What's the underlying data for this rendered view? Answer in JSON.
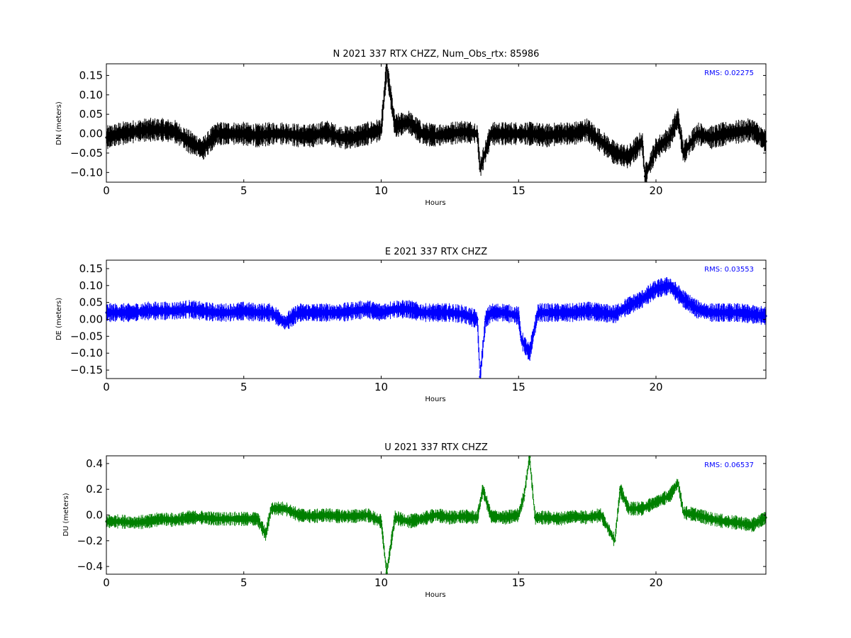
{
  "chart_data": [
    {
      "type": "scatter",
      "title": "N 2021 337 RTX  CHZZ, Num_Obs_rtx: 85986",
      "xlabel": "Hours",
      "ylabel": "DN (meters)",
      "xlim": [
        0,
        24
      ],
      "ylim": [
        -0.125,
        0.18
      ],
      "xticks": [
        0,
        5,
        10,
        15,
        20
      ],
      "xtick_labels": [
        "0",
        "5",
        "10",
        "15",
        "20"
      ],
      "yticks": [
        -0.1,
        -0.05,
        0.0,
        0.05,
        0.1,
        0.15
      ],
      "ytick_labels": [
        "−0.10",
        "−0.05",
        "0.00",
        "0.05",
        "0.10",
        "0.15"
      ],
      "annotation": "RMS:  0.02275",
      "annotation_color": "#0000ff",
      "color": "#000000",
      "grid": false,
      "noise": 0.022,
      "x": [
        0,
        0.5,
        1,
        1.5,
        2,
        2.5,
        3,
        3.5,
        4,
        4.5,
        5,
        5.5,
        6,
        6.5,
        7,
        7.5,
        8,
        8.5,
        9,
        9.5,
        10,
        10.2,
        10.5,
        11,
        11.5,
        12,
        12.5,
        13,
        13.5,
        13.6,
        14,
        14.5,
        15,
        15.5,
        16,
        16.5,
        17,
        17.5,
        18,
        18.5,
        19,
        19.5,
        19.6,
        20,
        20.5,
        20.8,
        21,
        21.5,
        22,
        22.5,
        23,
        23.5,
        24
      ],
      "y": [
        -0.01,
        0.0,
        0.005,
        0.01,
        0.01,
        0.005,
        -0.02,
        -0.04,
        0.0,
        0.0,
        0.0,
        -0.005,
        0.0,
        0.0,
        -0.005,
        -0.005,
        0.005,
        -0.01,
        -0.01,
        0.0,
        0.01,
        0.17,
        0.02,
        0.03,
        0.0,
        -0.005,
        0.0,
        0.005,
        0.0,
        -0.09,
        0.0,
        0.0,
        0.0,
        0.0,
        -0.005,
        0.0,
        0.0,
        0.01,
        -0.02,
        -0.05,
        -0.06,
        -0.02,
        -0.11,
        -0.04,
        -0.01,
        0.04,
        -0.05,
        0.0,
        -0.01,
        0.0,
        0.005,
        0.01,
        -0.02
      ]
    },
    {
      "type": "scatter",
      "title": "E 2021 337 RTX  CHZZ",
      "xlabel": "Hours",
      "ylabel": "DE (meters)",
      "xlim": [
        0,
        24
      ],
      "ylim": [
        -0.175,
        0.175
      ],
      "xticks": [
        0,
        5,
        10,
        15,
        20
      ],
      "xtick_labels": [
        "0",
        "5",
        "10",
        "15",
        "20"
      ],
      "yticks": [
        -0.15,
        -0.1,
        -0.05,
        0.0,
        0.05,
        0.1,
        0.15
      ],
      "ytick_labels": [
        "−0.15",
        "−0.10",
        "−0.05",
        "0.00",
        "0.05",
        "0.10",
        "0.15"
      ],
      "annotation": "RMS:  0.03553",
      "annotation_color": "#0000ff",
      "color": "#0000ff",
      "grid": false,
      "noise": 0.02,
      "x": [
        0,
        0.5,
        1,
        1.5,
        2,
        2.5,
        3,
        3.5,
        4,
        4.5,
        5,
        5.5,
        6,
        6.5,
        7,
        7.5,
        8,
        8.5,
        9,
        9.5,
        10,
        10.5,
        11,
        11.5,
        12,
        12.5,
        13,
        13.5,
        13.6,
        13.8,
        14,
        14.5,
        15,
        15.1,
        15.4,
        15.7,
        16,
        16.5,
        17,
        17.5,
        18,
        18.5,
        19,
        19.5,
        20,
        20.5,
        21,
        21.5,
        22,
        22.5,
        23,
        23.5,
        24
      ],
      "y": [
        0.02,
        0.02,
        0.02,
        0.025,
        0.025,
        0.025,
        0.03,
        0.025,
        0.02,
        0.02,
        0.025,
        0.02,
        0.02,
        -0.01,
        0.02,
        0.02,
        0.02,
        0.02,
        0.025,
        0.03,
        0.02,
        0.03,
        0.03,
        0.02,
        0.02,
        0.02,
        0.015,
        0.0,
        -0.17,
        0.0,
        0.02,
        0.02,
        0.01,
        -0.06,
        -0.1,
        0.02,
        0.02,
        0.02,
        0.02,
        0.025,
        0.02,
        0.015,
        0.04,
        0.06,
        0.09,
        0.1,
        0.06,
        0.03,
        0.02,
        0.02,
        0.02,
        0.015,
        0.01
      ]
    },
    {
      "type": "scatter",
      "title": "U 2021 337 RTX  CHZZ",
      "xlabel": "Hours",
      "ylabel": "DU (meters)",
      "xlim": [
        0,
        24
      ],
      "ylim": [
        -0.46,
        0.46
      ],
      "xticks": [
        0,
        5,
        10,
        15,
        20
      ],
      "xtick_labels": [
        "0",
        "5",
        "10",
        "15",
        "20"
      ],
      "yticks": [
        -0.4,
        -0.2,
        0.0,
        0.2,
        0.4
      ],
      "ytick_labels": [
        "−0.4",
        "−0.2",
        "0.0",
        "0.2",
        "0.4"
      ],
      "annotation": "RMS:  0.06537",
      "annotation_color": "#0000ff",
      "color": "#008000",
      "grid": false,
      "noise": 0.04,
      "x": [
        0,
        0.5,
        1,
        1.5,
        2,
        2.5,
        3,
        3.5,
        4,
        4.5,
        5,
        5.5,
        5.8,
        6,
        6.5,
        7,
        7.5,
        8,
        8.5,
        9,
        9.5,
        10,
        10.2,
        10.5,
        11,
        11.5,
        12,
        12.5,
        13,
        13.5,
        13.7,
        14,
        14.5,
        15,
        15.2,
        15.4,
        15.6,
        16,
        16.5,
        17,
        17.5,
        18,
        18.5,
        18.7,
        19,
        19.5,
        20,
        20.5,
        20.8,
        21,
        21.5,
        22,
        22.5,
        23,
        23.5,
        24
      ],
      "y": [
        -0.05,
        -0.05,
        -0.06,
        -0.05,
        -0.03,
        -0.04,
        -0.02,
        -0.02,
        -0.03,
        -0.03,
        -0.03,
        -0.03,
        -0.15,
        0.05,
        0.05,
        0.0,
        -0.01,
        0.0,
        -0.01,
        -0.01,
        0.0,
        -0.05,
        -0.45,
        -0.02,
        -0.05,
        -0.03,
        0.0,
        -0.02,
        -0.01,
        -0.02,
        0.2,
        -0.01,
        -0.02,
        0.0,
        0.15,
        0.45,
        -0.02,
        -0.02,
        -0.03,
        -0.01,
        -0.02,
        0.0,
        -0.2,
        0.2,
        0.05,
        0.05,
        0.1,
        0.15,
        0.25,
        0.02,
        0.0,
        -0.03,
        -0.05,
        -0.06,
        -0.08,
        -0.02
      ]
    }
  ]
}
